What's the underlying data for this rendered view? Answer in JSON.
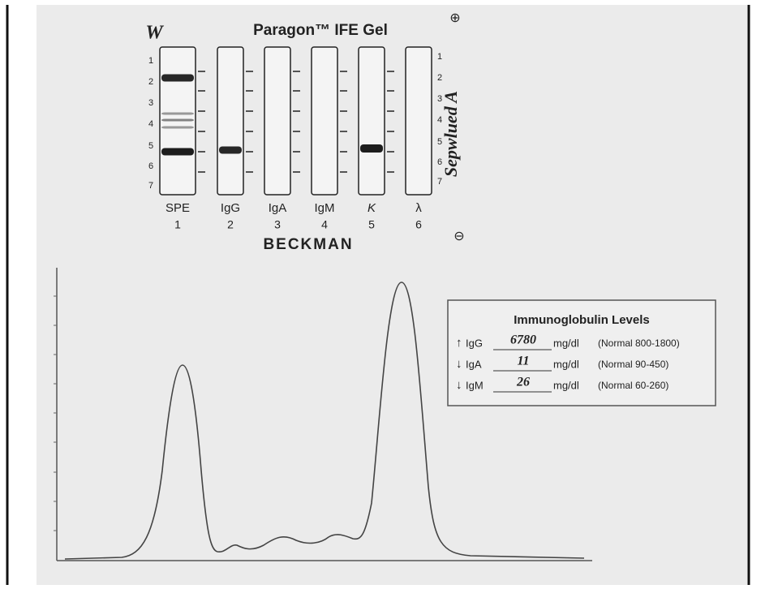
{
  "header": {
    "handwritten_mark": "W",
    "title": "Paragon™ IFE Gel",
    "anode": "⊕",
    "cathode": "⊖",
    "side_note": "Sepwlued A"
  },
  "gel": {
    "zone_labels": [
      "1",
      "2",
      "3",
      "4",
      "5",
      "6",
      "7"
    ],
    "lanes": [
      {
        "label": "SPE",
        "number": "1"
      },
      {
        "label": "IgG",
        "number": "2"
      },
      {
        "label": "IgA",
        "number": "3"
      },
      {
        "label": "IgM",
        "number": "4"
      },
      {
        "label": "K",
        "number": "5"
      },
      {
        "label": "λ",
        "number": "6"
      }
    ],
    "maker": "BECKMAN"
  },
  "levels": {
    "title": "Immunoglobulin Levels",
    "rows": [
      {
        "marker": "↑",
        "name": "IgG",
        "value": "6780",
        "unit": "mg/dl",
        "normal": "(Normal 800-1800)"
      },
      {
        "marker": "↓",
        "name": "IgA",
        "value": "11",
        "unit": "mg/dl",
        "normal": "(Normal 90-450)"
      },
      {
        "marker": "↓",
        "name": "IgM",
        "value": "26",
        "unit": "mg/dl",
        "normal": "(Normal 60-260)"
      }
    ]
  }
}
